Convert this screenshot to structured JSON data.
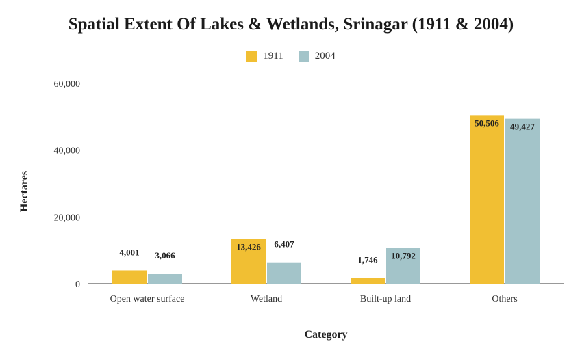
{
  "chart_data": {
    "type": "bar",
    "title": "Spatial Extent Of Lakes & Wetlands, Srinagar (1911 & 2004)",
    "xlabel": "Category",
    "ylabel": "Hectares",
    "categories": [
      "Open water surface",
      "Wetland",
      "Built-up land",
      "Others"
    ],
    "series": [
      {
        "name": "1911",
        "color": "#F1BF33",
        "values": [
          4001,
          13426,
          1746,
          50506
        ],
        "labels": [
          "4,001",
          "13,426",
          "1,746",
          "50,506"
        ]
      },
      {
        "name": "2004",
        "color": "#A3C4C9",
        "values": [
          3066,
          6407,
          10792,
          49427
        ],
        "labels": [
          "3,066",
          "6,407",
          "10,792",
          "49,427"
        ]
      }
    ],
    "ylim": [
      0,
      60000
    ],
    "yticks": [
      0,
      20000,
      40000,
      60000
    ],
    "ytick_labels": [
      "0",
      "20,000",
      "40,000",
      "60,000"
    ],
    "grid": false,
    "legend_position": "top"
  }
}
